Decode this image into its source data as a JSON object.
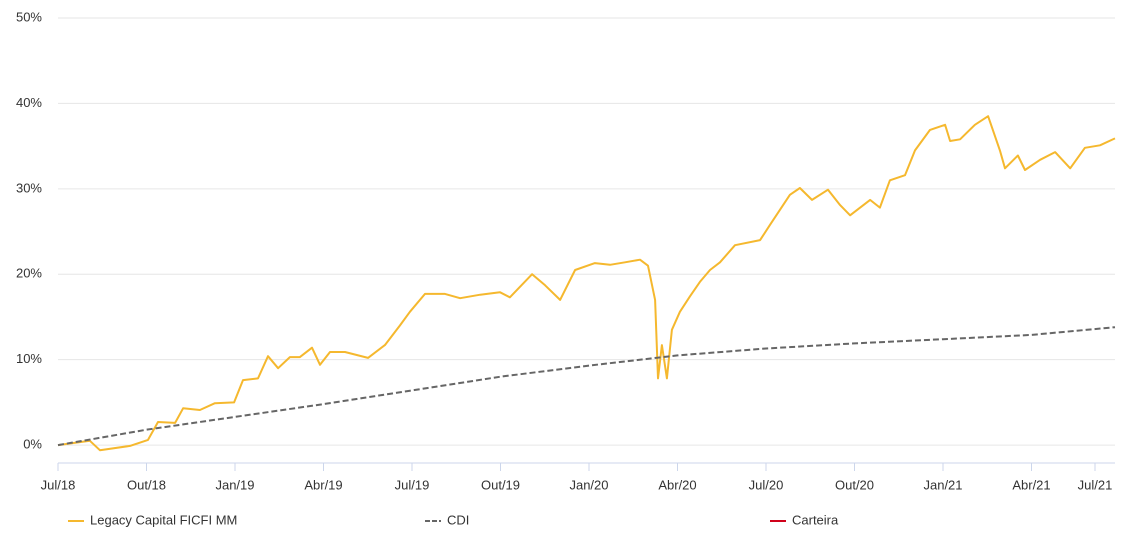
{
  "chart_data": {
    "type": "line",
    "xlim": [
      0,
      35.83
    ],
    "xticks": [
      {
        "value": 0,
        "label": "Jul/18"
      },
      {
        "value": 3,
        "label": "Out/18"
      },
      {
        "value": 6,
        "label": "Jan/19"
      },
      {
        "value": 9,
        "label": "Abr/19"
      },
      {
        "value": 12,
        "label": "Jul/19"
      },
      {
        "value": 15,
        "label": "Out/19"
      },
      {
        "value": 18,
        "label": "Jan/20"
      },
      {
        "value": 21,
        "label": "Abr/20"
      },
      {
        "value": 24,
        "label": "Jul/20"
      },
      {
        "value": 27,
        "label": "Out/20"
      },
      {
        "value": 30,
        "label": "Jan/21"
      },
      {
        "value": 33,
        "label": "Abr/21"
      },
      {
        "value": 36,
        "label": "Jul/21"
      }
    ],
    "ylim": [
      -2.1,
      50
    ],
    "yticks": [
      {
        "value": 0,
        "label": "0%"
      },
      {
        "value": 10,
        "label": "10%"
      },
      {
        "value": 20,
        "label": "20%"
      },
      {
        "value": 30,
        "label": "30%"
      },
      {
        "value": 40,
        "label": "40%"
      },
      {
        "value": 50,
        "label": "50%"
      }
    ],
    "grid": true,
    "legend": "bottom",
    "series": [
      {
        "name": "Legacy Capital FICFI MM",
        "color": "#f5b82e",
        "dash": false,
        "x": [
          0,
          1.08,
          1.42,
          2.44,
          3.05,
          3.39,
          3.97,
          4.24,
          4.81,
          5.32,
          5.97,
          6.27,
          6.78,
          7.12,
          7.46,
          7.86,
          8.2,
          8.61,
          8.88,
          9.22,
          9.73,
          10.51,
          11.08,
          11.59,
          11.93,
          12.44,
          13.12,
          13.63,
          14.31,
          14.98,
          15.32,
          16.07,
          16.51,
          17.02,
          17.53,
          18.2,
          18.71,
          19.22,
          19.73,
          20,
          20.24,
          20.34,
          20.47,
          20.64,
          20.81,
          21.08,
          21.42,
          21.76,
          22.1,
          22.44,
          22.95,
          23.8,
          24.14,
          24.81,
          25.15,
          25.56,
          26.1,
          26.51,
          26.85,
          27.53,
          27.86,
          28.2,
          28.71,
          29.05,
          29.56,
          30.07,
          30.24,
          30.58,
          31.08,
          31.53,
          31.93,
          32.1,
          32.54,
          32.78,
          33.29,
          33.8,
          34.31,
          34.81,
          35.32,
          35.83
        ],
        "values": [
          0,
          0.5,
          -0.6,
          -0.1,
          0.6,
          2.7,
          2.6,
          4.3,
          4.1,
          4.9,
          5,
          7.6,
          7.8,
          10.4,
          9,
          10.3,
          10.3,
          11.4,
          9.4,
          10.9,
          10.9,
          10.2,
          11.7,
          14,
          15.6,
          17.7,
          17.7,
          17.2,
          17.6,
          17.9,
          17.3,
          20,
          18.7,
          17,
          20.5,
          21.3,
          21.1,
          21.4,
          21.7,
          21,
          17,
          7.8,
          11.7,
          7.8,
          13.5,
          15.6,
          17.4,
          19.1,
          20.5,
          21.4,
          23.4,
          24,
          25.8,
          29.3,
          30.1,
          28.7,
          29.9,
          28.1,
          26.9,
          28.7,
          27.8,
          31,
          31.6,
          34.5,
          36.9,
          37.5,
          35.6,
          35.8,
          37.5,
          38.5,
          34.5,
          32.4,
          33.9,
          32.2,
          33.4,
          34.3,
          32.4,
          34.8,
          35.1,
          35.9
        ]
      },
      {
        "name": "CDI",
        "color": "#666666",
        "dash": true,
        "x": [
          0,
          3,
          6,
          9,
          12,
          15,
          18,
          21,
          24,
          27,
          30,
          33,
          35.83
        ],
        "values": [
          0,
          1.8,
          3.3,
          4.8,
          6.4,
          8,
          9.3,
          10.5,
          11.3,
          11.9,
          12.4,
          12.9,
          13.8
        ]
      },
      {
        "name": "Carteira",
        "color": "#d0021b",
        "dash": false,
        "x": [],
        "values": []
      }
    ]
  }
}
